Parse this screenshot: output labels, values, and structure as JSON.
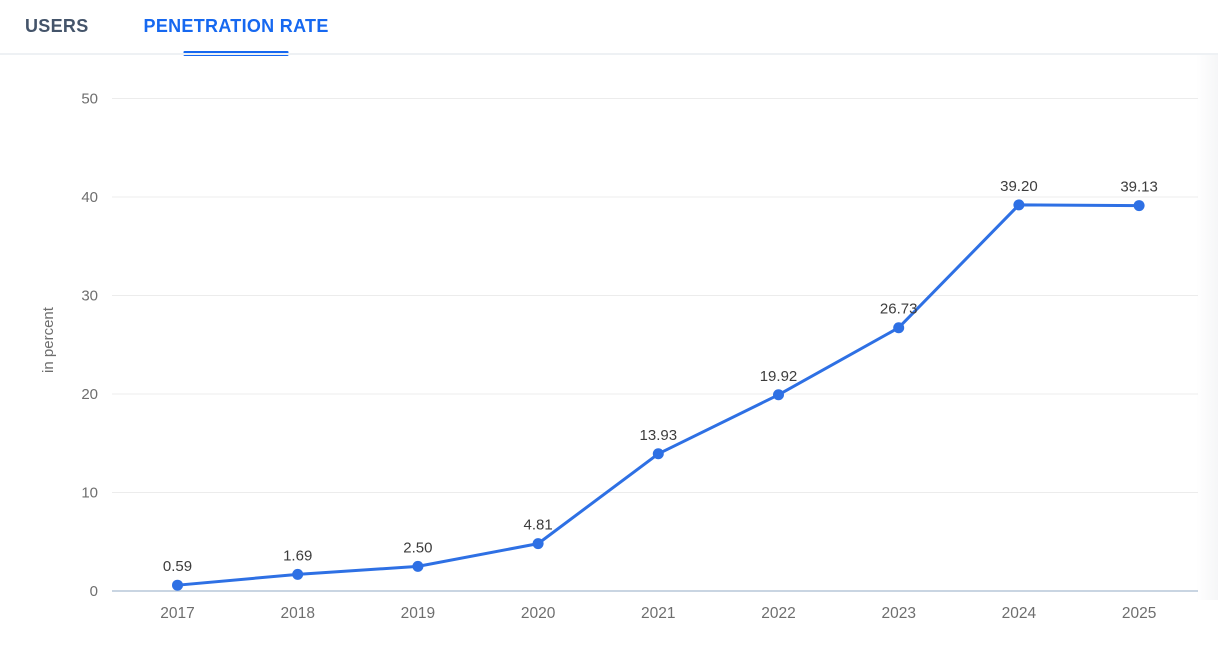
{
  "tabs": [
    {
      "label": "USERS",
      "active": false
    },
    {
      "label": "PENETRATION RATE",
      "active": true
    }
  ],
  "colors": {
    "accent_tab": "#1668f0",
    "tab_inactive_text": "#44546a",
    "tab_divider": "#eef1f4",
    "line": "#2e70e4",
    "marker": "#2e70e4",
    "gridline": "#ececec",
    "baseline": "#c9d5e2",
    "axis_text": "#6e6e6e",
    "value_label_text": "#3d3d3d"
  },
  "chart_data": {
    "type": "line",
    "title": "",
    "xlabel": "",
    "ylabel": "in percent",
    "x": [
      "2017",
      "2018",
      "2019",
      "2020",
      "2021",
      "2022",
      "2023",
      "2024",
      "2025"
    ],
    "series": [
      {
        "name": "Penetration Rate",
        "values": [
          0.59,
          1.69,
          2.5,
          4.81,
          13.93,
          19.92,
          26.73,
          39.2,
          39.13
        ],
        "labels": [
          "0.59",
          "1.69",
          "2.50",
          "4.81",
          "13.93",
          "19.92",
          "26.73",
          "39.20",
          "39.13"
        ]
      }
    ],
    "yticks": [
      0,
      10,
      20,
      30,
      40,
      50
    ],
    "ylim": [
      0,
      50
    ],
    "grid": true,
    "legend": "none"
  }
}
